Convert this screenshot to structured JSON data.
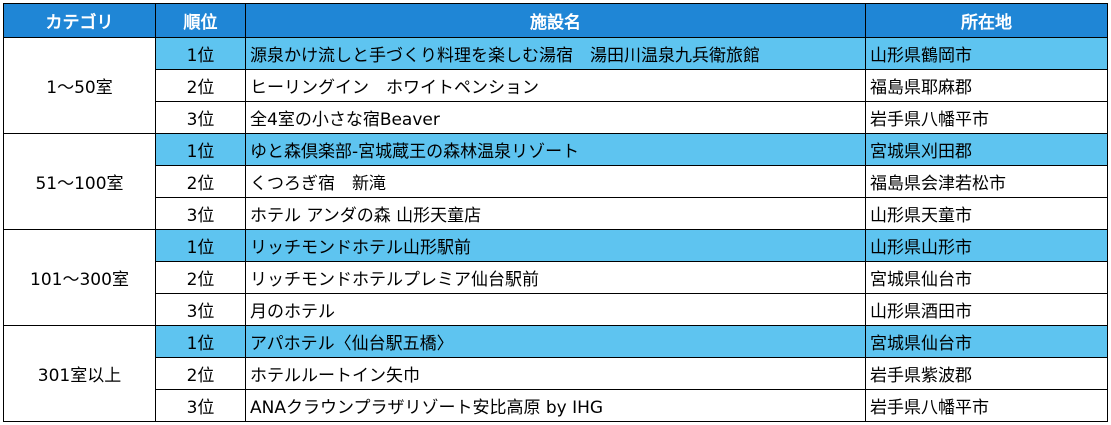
{
  "table": {
    "header": [
      "カテゴリ",
      "順位",
      "施設名",
      "所在地"
    ],
    "groups": [
      {
        "category": "1～50室",
        "rows": [
          [
            "1位",
            "源泉かけ流しと手づくり料理を楽しむ湯宿　湯田川温泉九兵衛旅館",
            "山形県鶴岡市"
          ],
          [
            "2位",
            "ヒーリングイン　ホワイトペンション",
            "福島県耶麻郡"
          ],
          [
            "3位",
            "全4室の小さな宿Beaver",
            "岩手県八幡平市"
          ]
        ]
      },
      {
        "category": "51～100室",
        "rows": [
          [
            "1位",
            "ゆと森倶楽部-宮城蔵王の森林温泉リゾート",
            "宮城県刈田郡"
          ],
          [
            "2位",
            "くつろぎ宿　新滝",
            "福島県会津若松市"
          ],
          [
            "3位",
            "ホテル アンダの森 山形天童店",
            "山形県天童市"
          ]
        ]
      },
      {
        "category": "101～300室",
        "rows": [
          [
            "1位",
            "リッチモンドホテル山形駅前",
            "山形県山形市"
          ],
          [
            "2位",
            "リッチモンドホテルプレミア仙台駅前",
            "宮城県仙台市"
          ],
          [
            "3位",
            "月のホテル",
            "山形県酒田市"
          ]
        ]
      },
      {
        "category": "301室以上",
        "rows": [
          [
            "1位",
            "アパホテル〈仙台駅五橋〉",
            "宮城県仙台市"
          ],
          [
            "2位",
            "ホテルルートイン矢巾",
            "岩手県紫波郡"
          ],
          [
            "3位",
            "ANAクラウンプラザリゾート安比高原 by IHG",
            "岩手県八幡平市"
          ]
        ]
      }
    ]
  }
}
